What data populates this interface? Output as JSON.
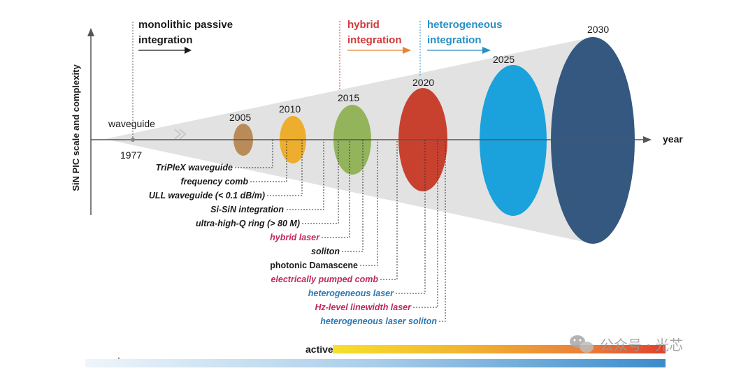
{
  "colors": {
    "black": "#1a1a1a",
    "pink": "#c0285f",
    "blue": "#2d78b2",
    "red": "#d2393a",
    "orange": "#e88334",
    "lightblue": "#2a8fc5",
    "cone": "#e2e2e2",
    "ellipse_2005": "#b98b58",
    "ellipse_2010": "#edae2e",
    "ellipse_2015": "#93b45b",
    "ellipse_2020": "#c8412f",
    "ellipse_2025": "#1ba2dc",
    "ellipse_2030": "#34587f"
  },
  "axes": {
    "y_label": "SiN PIC scale and complexity",
    "x_label": "year"
  },
  "headings": {
    "passive_line1": "monolithic passive",
    "passive_line2": "integration",
    "hybrid_line1": "hybrid",
    "hybrid_line2": "integration",
    "hetero_line1": "heterogeneous",
    "hetero_line2": "integration"
  },
  "start": {
    "label": "waveguide",
    "year": "1977"
  },
  "years": [
    {
      "label": "2005",
      "color": "ellipse_2005"
    },
    {
      "label": "2010",
      "color": "ellipse_2010"
    },
    {
      "label": "2015",
      "color": "ellipse_2015"
    },
    {
      "label": "2020",
      "color": "ellipse_2020"
    },
    {
      "label": "2025",
      "color": "ellipse_2025"
    },
    {
      "label": "2030",
      "color": "ellipse_2030"
    }
  ],
  "milestones": [
    {
      "label": "TriPleX waveguide",
      "color": "black"
    },
    {
      "label": "frequency comb",
      "color": "black"
    },
    {
      "label": "ULL waveguide (< 0.1 dB/m)",
      "color": "black"
    },
    {
      "label": "Si-SiN integration",
      "color": "black"
    },
    {
      "label": "ultra-high-Q ring (> 80 M)",
      "color": "black"
    },
    {
      "label": "hybrid laser",
      "color": "pink"
    },
    {
      "label": "soliton",
      "color": "black"
    },
    {
      "label": "photonic Damascene",
      "color": "black"
    },
    {
      "label": "electrically pumped comb",
      "color": "pink"
    },
    {
      "label": "heterogeneous laser",
      "color": "blue"
    },
    {
      "label": "Hz-level linewidth laser",
      "color": "pink"
    },
    {
      "label": "heterogeneous laser soliton",
      "color": "blue"
    }
  ],
  "bars": {
    "active": "active",
    "passive": "passive"
  },
  "watermark": "公众号 · 光芯"
}
